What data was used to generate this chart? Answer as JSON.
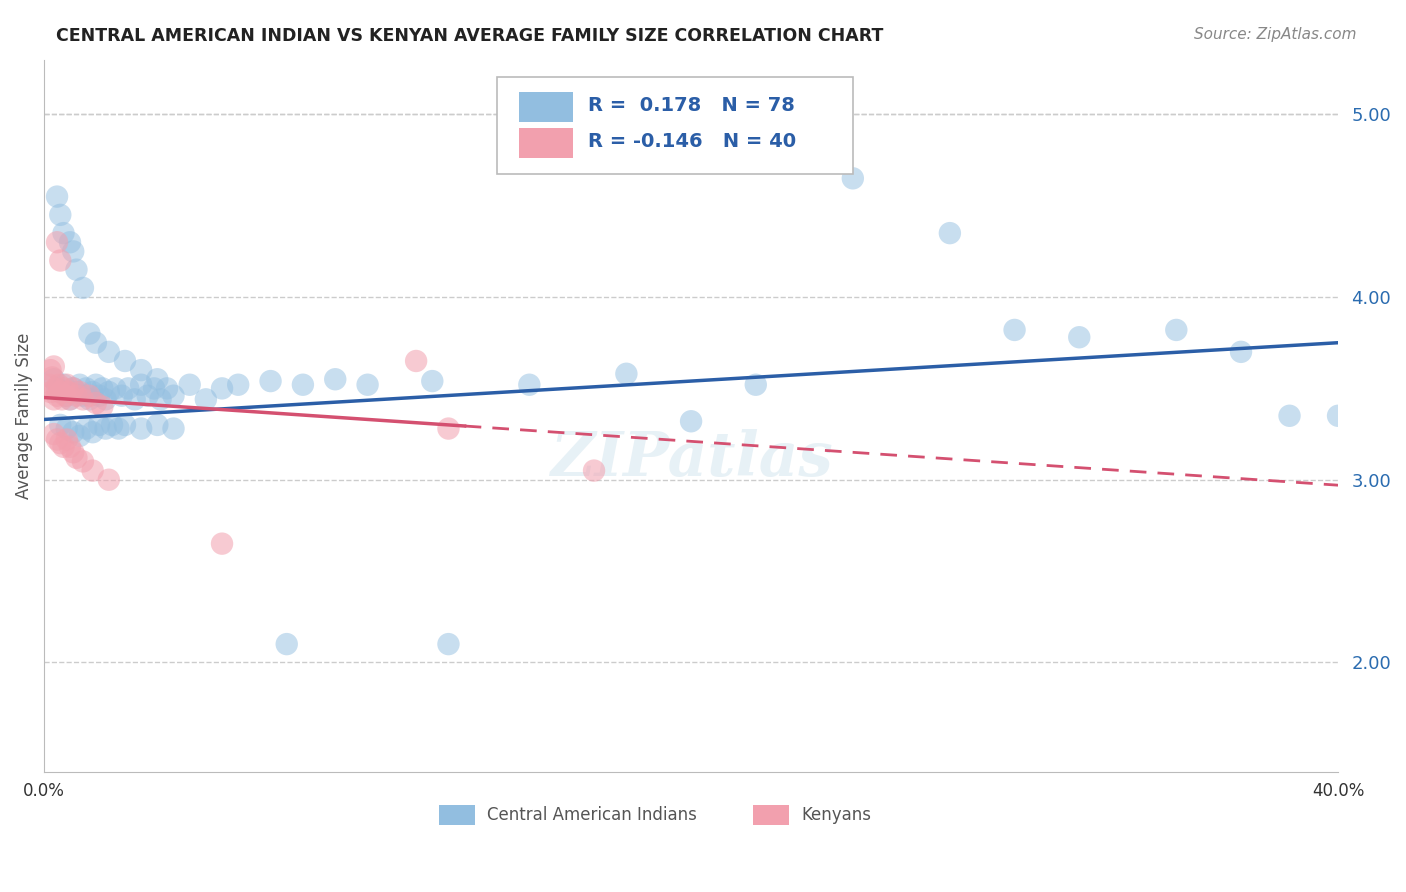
{
  "title": "CENTRAL AMERICAN INDIAN VS KENYAN AVERAGE FAMILY SIZE CORRELATION CHART",
  "source": "Source: ZipAtlas.com",
  "ylabel": "Average Family Size",
  "xlim": [
    0.0,
    40.0
  ],
  "ylim": [
    1.4,
    5.3
  ],
  "yticks": [
    2.0,
    3.0,
    4.0,
    5.0
  ],
  "blue_color": "#92BEE0",
  "pink_color": "#F2A0AE",
  "blue_line_color": "#2B5EA7",
  "pink_line_color": "#D45070",
  "legend_blue_r": "0.178",
  "legend_blue_n": "78",
  "legend_pink_r": "-0.146",
  "legend_pink_n": "40",
  "legend_label1": "Central American Indians",
  "legend_label2": "Kenyans",
  "blue_line_x0": 0.0,
  "blue_line_y0": 3.33,
  "blue_line_x1": 40.0,
  "blue_line_y1": 3.75,
  "pink_line_x0": 0.0,
  "pink_line_y0": 3.45,
  "pink_line_x1": 40.0,
  "pink_line_y1": 2.97,
  "pink_dash_start_x": 13.0,
  "blue_scatter": [
    [
      0.3,
      3.55
    ],
    [
      0.4,
      3.5
    ],
    [
      0.5,
      3.48
    ],
    [
      0.6,
      3.52
    ],
    [
      0.7,
      3.46
    ],
    [
      0.8,
      3.44
    ],
    [
      0.9,
      3.5
    ],
    [
      1.0,
      3.48
    ],
    [
      1.1,
      3.52
    ],
    [
      1.2,
      3.46
    ],
    [
      1.3,
      3.5
    ],
    [
      1.4,
      3.44
    ],
    [
      1.5,
      3.48
    ],
    [
      1.6,
      3.52
    ],
    [
      1.7,
      3.46
    ],
    [
      1.8,
      3.5
    ],
    [
      1.9,
      3.44
    ],
    [
      2.0,
      3.48
    ],
    [
      2.2,
      3.5
    ],
    [
      2.4,
      3.46
    ],
    [
      2.6,
      3.5
    ],
    [
      2.8,
      3.44
    ],
    [
      3.0,
      3.52
    ],
    [
      3.2,
      3.46
    ],
    [
      3.4,
      3.5
    ],
    [
      3.6,
      3.44
    ],
    [
      3.8,
      3.5
    ],
    [
      4.0,
      3.46
    ],
    [
      4.5,
      3.52
    ],
    [
      5.0,
      3.44
    ],
    [
      0.4,
      4.55
    ],
    [
      0.5,
      4.45
    ],
    [
      0.6,
      4.35
    ],
    [
      0.8,
      4.3
    ],
    [
      0.9,
      4.25
    ],
    [
      1.0,
      4.15
    ],
    [
      1.2,
      4.05
    ],
    [
      1.4,
      3.8
    ],
    [
      1.6,
      3.75
    ],
    [
      2.0,
      3.7
    ],
    [
      2.5,
      3.65
    ],
    [
      3.0,
      3.6
    ],
    [
      3.5,
      3.55
    ],
    [
      5.5,
      3.5
    ],
    [
      6.0,
      3.52
    ],
    [
      7.0,
      3.54
    ],
    [
      8.0,
      3.52
    ],
    [
      9.0,
      3.55
    ],
    [
      10.0,
      3.52
    ],
    [
      12.0,
      3.54
    ],
    [
      0.5,
      3.3
    ],
    [
      0.7,
      3.28
    ],
    [
      0.9,
      3.26
    ],
    [
      1.1,
      3.24
    ],
    [
      1.3,
      3.28
    ],
    [
      1.5,
      3.26
    ],
    [
      1.7,
      3.3
    ],
    [
      1.9,
      3.28
    ],
    [
      2.1,
      3.3
    ],
    [
      2.3,
      3.28
    ],
    [
      2.5,
      3.3
    ],
    [
      3.0,
      3.28
    ],
    [
      3.5,
      3.3
    ],
    [
      4.0,
      3.28
    ],
    [
      7.5,
      2.1
    ],
    [
      12.5,
      2.1
    ],
    [
      25.0,
      4.65
    ],
    [
      28.0,
      4.35
    ],
    [
      30.0,
      3.82
    ],
    [
      32.0,
      3.78
    ],
    [
      35.0,
      3.82
    ],
    [
      37.0,
      3.7
    ],
    [
      38.5,
      3.35
    ],
    [
      20.0,
      3.32
    ],
    [
      22.0,
      3.52
    ],
    [
      15.0,
      3.52
    ],
    [
      18.0,
      3.58
    ],
    [
      40.0,
      3.35
    ]
  ],
  "pink_scatter": [
    [
      0.15,
      3.52
    ],
    [
      0.2,
      3.48
    ],
    [
      0.3,
      3.44
    ],
    [
      0.35,
      3.5
    ],
    [
      0.4,
      3.46
    ],
    [
      0.45,
      3.52
    ],
    [
      0.5,
      3.48
    ],
    [
      0.55,
      3.44
    ],
    [
      0.6,
      3.5
    ],
    [
      0.65,
      3.46
    ],
    [
      0.7,
      3.52
    ],
    [
      0.75,
      3.48
    ],
    [
      0.8,
      3.44
    ],
    [
      0.9,
      3.5
    ],
    [
      1.0,
      3.46
    ],
    [
      1.1,
      3.48
    ],
    [
      1.2,
      3.44
    ],
    [
      1.4,
      3.46
    ],
    [
      1.6,
      3.42
    ],
    [
      1.8,
      3.4
    ],
    [
      0.2,
      3.6
    ],
    [
      0.25,
      3.56
    ],
    [
      0.3,
      3.62
    ],
    [
      0.4,
      4.3
    ],
    [
      0.5,
      4.2
    ],
    [
      0.3,
      3.25
    ],
    [
      0.4,
      3.22
    ],
    [
      0.5,
      3.2
    ],
    [
      0.6,
      3.18
    ],
    [
      0.7,
      3.22
    ],
    [
      0.8,
      3.18
    ],
    [
      0.9,
      3.15
    ],
    [
      1.0,
      3.12
    ],
    [
      1.2,
      3.1
    ],
    [
      1.5,
      3.05
    ],
    [
      2.0,
      3.0
    ],
    [
      11.5,
      3.65
    ],
    [
      12.5,
      3.28
    ],
    [
      5.5,
      2.65
    ],
    [
      17.0,
      3.05
    ]
  ]
}
